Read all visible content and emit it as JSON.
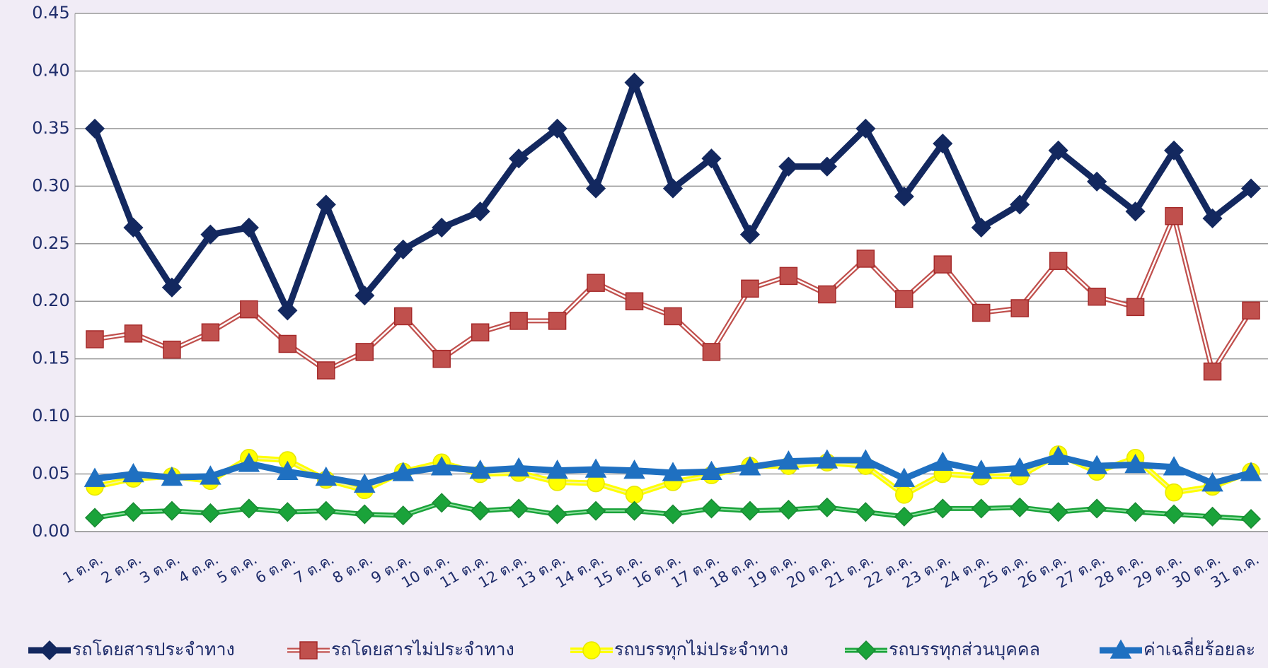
{
  "chart_data": {
    "type": "line",
    "categories": [
      "1 ต.ค.",
      "2 ต.ค.",
      "3 ต.ค.",
      "4 ต.ค.",
      "5 ต.ค.",
      "6 ต.ค.",
      "7 ต.ค.",
      "8 ต.ค.",
      "9 ต.ค.",
      "10 ต.ค.",
      "11 ต.ค.",
      "12 ต.ค.",
      "13 ต.ค.",
      "14 ต.ค.",
      "15 ต.ค.",
      "16 ต.ค.",
      "17 ต.ค.",
      "18 ต.ค.",
      "19 ต.ค.",
      "20 ต.ค.",
      "21 ต.ค.",
      "22 ต.ค.",
      "23 ต.ค.",
      "24 ต.ค.",
      "25 ต.ค.",
      "26 ต.ค.",
      "27 ต.ค.",
      "28 ต.ค.",
      "29 ต.ค.",
      "30 ต.ค.",
      "31 ต.ค."
    ],
    "series": [
      {
        "name": "รถโดยสารประจำทาง",
        "color": "#13285f",
        "marker": "diamond",
        "values": [
          0.35,
          0.264,
          0.212,
          0.258,
          0.264,
          0.192,
          0.284,
          0.205,
          0.245,
          0.264,
          0.278,
          0.324,
          0.35,
          0.298,
          0.39,
          0.298,
          0.324,
          0.258,
          0.317,
          0.317,
          0.35,
          0.291,
          0.337,
          0.264,
          0.284,
          0.331,
          0.304,
          0.278,
          0.331,
          0.272,
          0.298
        ]
      },
      {
        "name": "รถโดยสารไม่ประจำทาง",
        "color": "#c0504d",
        "marker": "square",
        "values": [
          0.167,
          0.172,
          0.158,
          0.173,
          0.193,
          0.163,
          0.14,
          0.156,
          0.187,
          0.15,
          0.173,
          0.183,
          0.183,
          0.216,
          0.2,
          0.187,
          0.156,
          0.211,
          0.222,
          0.206,
          0.237,
          0.202,
          0.232,
          0.19,
          0.194,
          0.235,
          0.204,
          0.195,
          0.274,
          0.139,
          0.192
        ]
      },
      {
        "name": "รถบรรทุกไม่ประจำทาง",
        "color": "#ffff00",
        "marker": "circle",
        "values": [
          0.039,
          0.046,
          0.048,
          0.044,
          0.064,
          0.062,
          0.045,
          0.036,
          0.052,
          0.06,
          0.05,
          0.051,
          0.043,
          0.042,
          0.032,
          0.043,
          0.049,
          0.057,
          0.057,
          0.06,
          0.057,
          0.032,
          0.05,
          0.048,
          0.048,
          0.067,
          0.052,
          0.064,
          0.034,
          0.039,
          0.052
        ]
      },
      {
        "name": "รถบรรทุกส่วนบุคคล",
        "color": "#1aa33a",
        "marker": "diamond",
        "values": [
          0.012,
          0.017,
          0.018,
          0.016,
          0.02,
          0.017,
          0.018,
          0.015,
          0.014,
          0.025,
          0.018,
          0.02,
          0.015,
          0.018,
          0.018,
          0.015,
          0.02,
          0.018,
          0.019,
          0.021,
          0.017,
          0.013,
          0.02,
          0.02,
          0.021,
          0.017,
          0.02,
          0.017,
          0.015,
          0.013,
          0.011
        ]
      },
      {
        "name": "ค่าเฉลี่ยร้อยละ",
        "color": "#1f70c1",
        "marker": "triangle",
        "values": [
          0.046,
          0.05,
          0.047,
          0.048,
          0.059,
          0.052,
          0.047,
          0.041,
          0.051,
          0.056,
          0.053,
          0.055,
          0.053,
          0.054,
          0.053,
          0.051,
          0.052,
          0.056,
          0.061,
          0.062,
          0.062,
          0.046,
          0.06,
          0.053,
          0.055,
          0.065,
          0.057,
          0.058,
          0.056,
          0.042,
          0.051
        ]
      }
    ],
    "ylim": [
      0,
      0.45
    ],
    "yticks": [
      {
        "value": 0,
        "label": "0.00"
      },
      0.05,
      {
        "value": 0.1,
        "label": "0.10"
      },
      0.15,
      {
        "value": 0.2,
        "label": "0.20"
      },
      0.25,
      {
        "value": 0.3,
        "label": "0.30"
      },
      0.35,
      {
        "value": 0.4,
        "label": "0.40"
      },
      0.45
    ],
    "grid": true,
    "legend": "bottom"
  }
}
